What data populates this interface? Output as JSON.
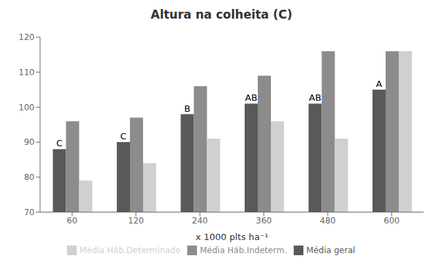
{
  "chart_data": {
    "type": "bar",
    "title": "Altura na colheita (C)",
    "xlabel": "x 1000 plts ha⁻¹",
    "categories": [
      60,
      120,
      240,
      360,
      480,
      600
    ],
    "series": [
      {
        "name": "Média geral",
        "color": "#595959",
        "values": [
          88,
          90,
          98,
          101,
          101,
          105
        ],
        "annotations": [
          "C",
          "C",
          "B",
          "AB",
          "AB",
          "A"
        ]
      },
      {
        "name": "Média Háb.Indeterm.",
        "color": "#8c8c8c",
        "values": [
          96,
          97,
          106,
          109,
          116,
          116
        ]
      },
      {
        "name": "Média Háb.Determinado",
        "color": "#d0d0d0",
        "values": [
          79,
          84,
          91,
          96,
          91,
          116
        ]
      }
    ],
    "ylim": [
      70,
      120
    ],
    "yticks": [
      70,
      80,
      90,
      100,
      110,
      120
    ],
    "grid": false,
    "legend": "bottom"
  }
}
